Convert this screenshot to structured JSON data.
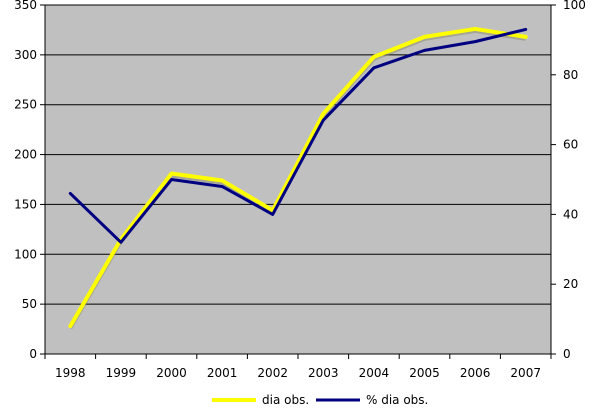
{
  "chart_data": {
    "type": "line",
    "title": "",
    "xlabel": "",
    "ylabel": "",
    "categories": [
      "1998",
      "1999",
      "2000",
      "2001",
      "2002",
      "2003",
      "2004",
      "2005",
      "2006",
      "2007"
    ],
    "series": [
      {
        "name": "dia obs.",
        "axis": "left",
        "color": "#ffff00",
        "values": [
          28,
          115,
          181,
          174,
          144,
          241,
          298,
          318,
          326,
          318
        ]
      },
      {
        "name": "% dia obs.",
        "axis": "right",
        "color": "#000080",
        "values": [
          46,
          32,
          50,
          48,
          40,
          67,
          82,
          87,
          89.5,
          93
        ]
      }
    ],
    "ylim_left": [
      0,
      350
    ],
    "yticks_left": [
      0,
      50,
      100,
      150,
      200,
      250,
      300,
      350
    ],
    "ylim_right": [
      0,
      100
    ],
    "yticks_right": [
      0,
      20,
      40,
      60,
      80,
      100
    ],
    "grid": true,
    "plot_background": "#c0c0c0",
    "legend_position": "bottom"
  }
}
